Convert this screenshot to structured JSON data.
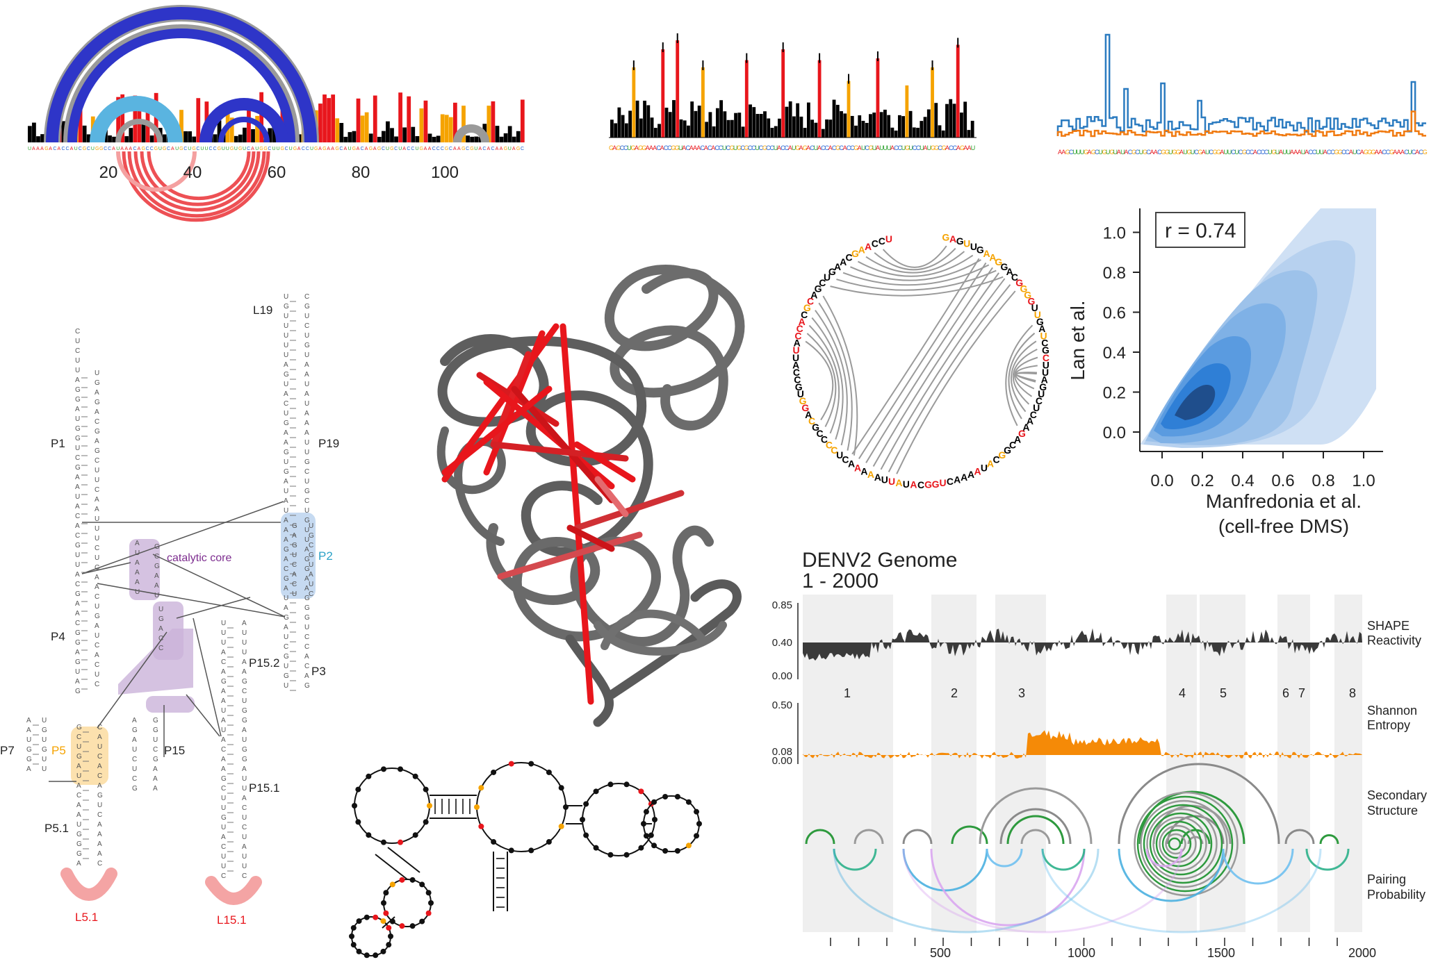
{
  "arc_panel": {
    "ticks": [
      "20",
      "40",
      "60",
      "80",
      "100"
    ]
  },
  "scatter": {
    "r_label": "r = 0.74",
    "ylabel": "Lan et al.",
    "xlabel_line1": "Manfredonia et al.",
    "xlabel_line2": "(cell-free DMS)",
    "xticks": [
      "0.0",
      "0.2",
      "0.4",
      "0.6",
      "0.8",
      "1.0"
    ],
    "yticks": [
      "0.0",
      "0.2",
      "0.4",
      "0.6",
      "0.8",
      "1.0"
    ]
  },
  "secondary_structure": {
    "helix_labels": [
      "L19",
      "P1",
      "P19",
      "P2",
      "P4",
      "P3",
      "P15.2",
      "P7",
      "P5",
      "P15",
      "P15.1",
      "P5.1",
      "L5.1",
      "L15.1"
    ],
    "core_label": "catalytic core"
  },
  "genome": {
    "title_line1": "DENV2 Genome",
    "title_line2": "1 - 2000",
    "shape_ticks": [
      "0.85",
      "0.40",
      "0.00"
    ],
    "entropy_ticks": [
      "0.50",
      "0.08",
      "0.00"
    ],
    "region_labels": [
      "1",
      "2",
      "3",
      "4",
      "5",
      "6",
      "7",
      "8"
    ],
    "track_labels": {
      "shape1": "SHAPE",
      "shape2": "Reactivity",
      "ent1": "Shannon",
      "ent2": "Entropy",
      "ss1": "Secondary",
      "ss2": "Structure",
      "pp1": "Pairing",
      "pp2": "Probability"
    },
    "xticks": [
      "500",
      "1000",
      "1500",
      "2000"
    ]
  },
  "colors": {
    "high": "#e8161c",
    "medium": "#f5a300",
    "low": "#000000",
    "arc_blue": "#2e35c8",
    "arc_light": "#5ab4e0",
    "arc_gray": "#9a9a9a",
    "kde_dark": "#1f4e8c",
    "trace_blue": "#2b7bc0",
    "trace_orange": "#f07a10",
    "entropy_orange": "#f58a07",
    "shape_dark": "#3a3a3a"
  }
}
